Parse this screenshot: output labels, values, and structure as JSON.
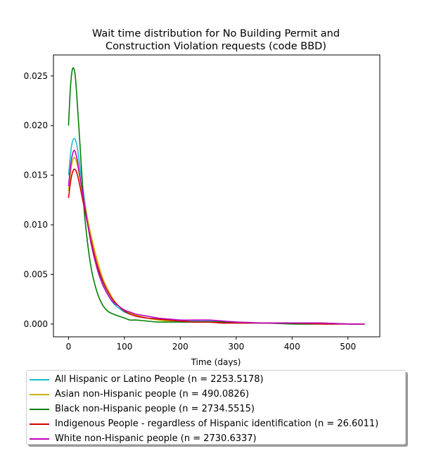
{
  "chart_data": {
    "type": "line",
    "title_lines": [
      "Wait time distribution  for No Building Permit and",
      "Construction Violation  requests (code BBD)"
    ],
    "xlabel": "Time (days)",
    "ylabel": "",
    "xlim": [
      -27,
      557
    ],
    "ylim": [
      -0.00129,
      0.02712
    ],
    "xticks": [
      0,
      100,
      200,
      300,
      400,
      500
    ],
    "yticks": [
      0.0,
      0.005,
      0.01,
      0.015,
      0.02,
      0.025
    ],
    "ytick_labels": [
      "0.000",
      "0.005",
      "0.010",
      "0.015",
      "0.020",
      "0.025"
    ],
    "grid": false,
    "legend_position": "below plot",
    "series": [
      {
        "name": "All Hispanic or Latino People (n = 2253.5178)",
        "color": "#17becf",
        "x": [
          0,
          5,
          10,
          15,
          20,
          30,
          40,
          50,
          60,
          70,
          80,
          90,
          100,
          110,
          120,
          140,
          160,
          180,
          200,
          225,
          250,
          275,
          300,
          350,
          400,
          450,
          500,
          530
        ],
        "y": [
          0.015,
          0.0178,
          0.0187,
          0.018,
          0.016,
          0.012,
          0.0085,
          0.006,
          0.0042,
          0.003,
          0.0021,
          0.0016,
          0.0012,
          0.001,
          0.0008,
          0.0006,
          0.0005,
          0.0004,
          0.0004,
          0.0003,
          0.0003,
          0.0002,
          0.0002,
          0.0001,
          0.0001,
          0.0001,
          0.0,
          0.0
        ]
      },
      {
        "name": "Asian non-Hispanic people (n = 490.0826)",
        "color": "#c8b400",
        "x": [
          0,
          5,
          10,
          15,
          20,
          30,
          40,
          50,
          60,
          70,
          80,
          90,
          100,
          110,
          120,
          140,
          160,
          180,
          200,
          225,
          250,
          275,
          300,
          350,
          400,
          450,
          500,
          530
        ],
        "y": [
          0.0134,
          0.0158,
          0.0168,
          0.0162,
          0.0148,
          0.0118,
          0.009,
          0.0067,
          0.0048,
          0.0035,
          0.0025,
          0.0018,
          0.0014,
          0.0011,
          0.0009,
          0.0006,
          0.0004,
          0.0003,
          0.0003,
          0.0002,
          0.0002,
          0.0002,
          0.0002,
          0.0001,
          0.0001,
          0.0001,
          0.0,
          0.0
        ]
      },
      {
        "name": "Black non-Hispanic people (n = 2734.5515)",
        "color": "#008000",
        "x": [
          0,
          3,
          6,
          9,
          12,
          15,
          20,
          25,
          30,
          40,
          50,
          60,
          70,
          80,
          90,
          100,
          110,
          120,
          140,
          160,
          180,
          200,
          225,
          250,
          275,
          300,
          350,
          400,
          450,
          500,
          530
        ],
        "y": [
          0.02,
          0.0235,
          0.0254,
          0.0258,
          0.025,
          0.0228,
          0.0185,
          0.014,
          0.0102,
          0.0058,
          0.0034,
          0.002,
          0.0013,
          0.001,
          0.0008,
          0.0006,
          0.0004,
          0.0004,
          0.0003,
          0.0002,
          0.0002,
          0.0002,
          0.0002,
          0.0002,
          0.0002,
          0.0001,
          0.0001,
          0.0,
          0.0,
          0.0,
          0.0
        ]
      },
      {
        "name": "Indigenous People - regardless of Hispanic identification (n = 26.6011)",
        "color": "#d40000",
        "x": [
          0,
          5,
          10,
          15,
          20,
          30,
          40,
          50,
          60,
          70,
          80,
          90,
          100,
          110,
          120,
          140,
          160,
          180,
          200,
          225,
          250,
          275,
          300,
          350,
          400,
          450,
          500,
          530
        ],
        "y": [
          0.0127,
          0.0148,
          0.0156,
          0.0152,
          0.014,
          0.0112,
          0.0085,
          0.0062,
          0.0045,
          0.0033,
          0.0024,
          0.0018,
          0.0013,
          0.001,
          0.0008,
          0.0006,
          0.0005,
          0.0004,
          0.0003,
          0.0002,
          0.0002,
          0.0001,
          0.0001,
          0.0001,
          0.0001,
          0.0,
          0.0,
          0.0
        ]
      },
      {
        "name": "White non-Hispanic people (n = 2730.6337)",
        "color": "#c000c0",
        "x": [
          0,
          5,
          10,
          15,
          20,
          30,
          40,
          50,
          60,
          70,
          80,
          90,
          100,
          110,
          120,
          140,
          160,
          180,
          200,
          225,
          250,
          275,
          300,
          350,
          400,
          450,
          500,
          530
        ],
        "y": [
          0.0139,
          0.0165,
          0.0175,
          0.0167,
          0.015,
          0.0115,
          0.0082,
          0.0058,
          0.0041,
          0.003,
          0.0022,
          0.0018,
          0.0014,
          0.0012,
          0.001,
          0.0008,
          0.0006,
          0.0005,
          0.0004,
          0.0004,
          0.0004,
          0.0003,
          0.0002,
          0.0001,
          0.0001,
          0.0001,
          0.0,
          0.0
        ]
      }
    ]
  }
}
